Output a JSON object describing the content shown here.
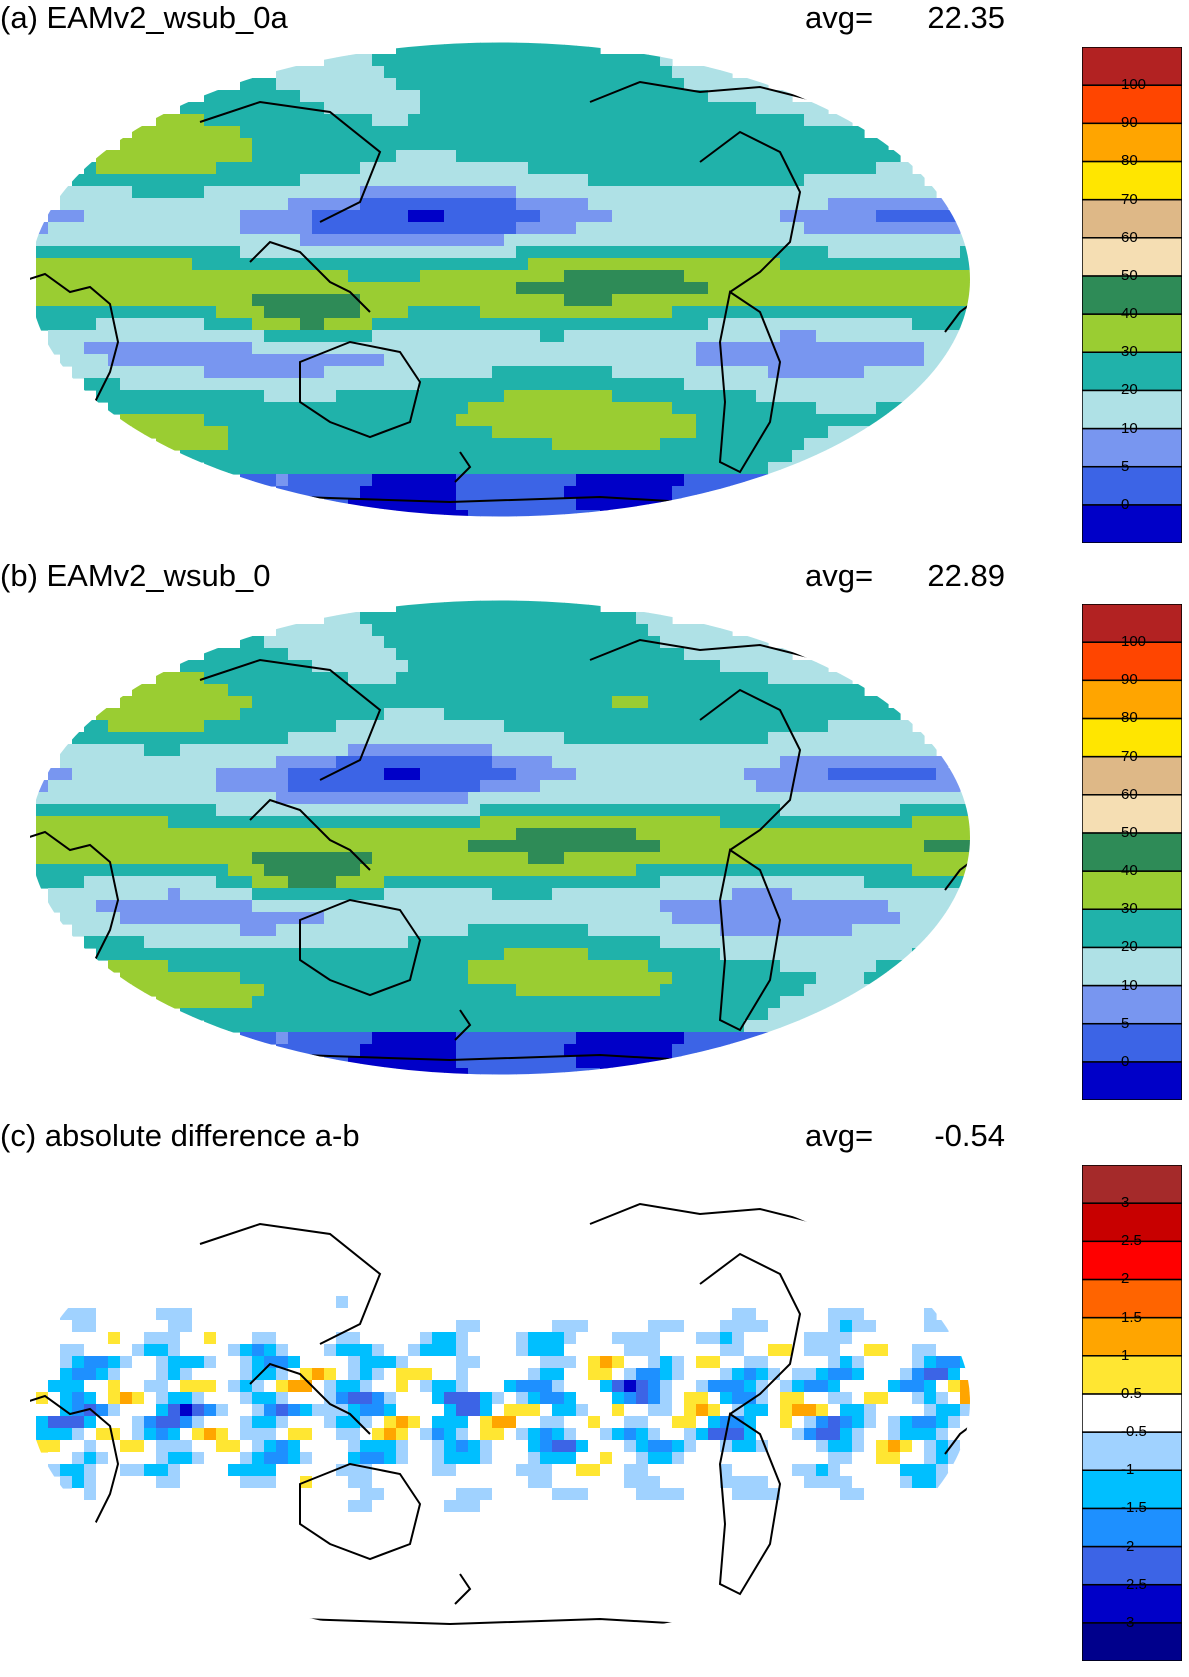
{
  "panels": [
    {
      "title": "(a) EAMv2_wsub_0a",
      "avg_label": "avg=",
      "avg_value": "22.35",
      "colorbar": {
        "colors": [
          "#0000c8",
          "#3c64e6",
          "#7896f0",
          "#afe1e6",
          "#20b2aa",
          "#9acd32",
          "#2e8b57",
          "#f5deb3",
          "#deb887",
          "#ffe600",
          "#ffa500",
          "#ff4500",
          "#b22222"
        ],
        "tick_labels": [
          "0",
          "5",
          "10",
          "20",
          "30",
          "40",
          "50",
          "60",
          "70",
          "80",
          "90",
          "100"
        ]
      }
    },
    {
      "title": "(b) EAMv2_wsub_0",
      "avg_label": "avg=",
      "avg_value": "22.89",
      "colorbar": {
        "colors": [
          "#0000c8",
          "#3c64e6",
          "#7896f0",
          "#afe1e6",
          "#20b2aa",
          "#9acd32",
          "#2e8b57",
          "#f5deb3",
          "#deb887",
          "#ffe600",
          "#ffa500",
          "#ff4500",
          "#b22222"
        ],
        "tick_labels": [
          "0",
          "5",
          "10",
          "20",
          "30",
          "40",
          "50",
          "60",
          "70",
          "80",
          "90",
          "100"
        ]
      }
    },
    {
      "title": "(c) absolute difference a-b",
      "avg_label": "avg=",
      "avg_value": "-0.54",
      "colorbar": {
        "colors": [
          "#00008c",
          "#0000c8",
          "#3c64e6",
          "#1e90ff",
          "#00bfff",
          "#a0d2ff",
          "#ffffff",
          "#ffe632",
          "#ffa500",
          "#ff6400",
          "#ff0000",
          "#c80000",
          "#a52a2a"
        ],
        "tick_labels": [
          "-3",
          "-2.5",
          "-2",
          "-1.5",
          "-1",
          "-0.5",
          "0.5",
          "1",
          "1.5",
          "2",
          "2.5",
          "3"
        ]
      }
    }
  ]
}
